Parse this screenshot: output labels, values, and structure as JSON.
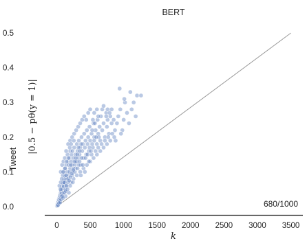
{
  "chart_data": {
    "type": "scatter",
    "title": "BERT",
    "row_label": "Tweet",
    "ylabel": "|0.5 − pθ(y = 1)|",
    "xlabel": "k",
    "xlim": [
      -180,
      3680
    ],
    "ylim": [
      -0.02,
      0.52
    ],
    "x_ticks": [
      0,
      500,
      1000,
      1500,
      2000,
      2500,
      3000,
      3500
    ],
    "x_tick_labels": [
      "0",
      "500",
      "1000",
      "1500",
      "2000",
      "2500",
      "3000",
      "3500"
    ],
    "y_ticks": [
      0.0,
      0.1,
      0.2,
      0.3,
      0.4,
      0.5
    ],
    "y_tick_labels": [
      "0.0",
      "0.1",
      "0.2",
      "0.3",
      "0.4",
      "0.5"
    ],
    "reference_line": {
      "x": [
        0,
        3500
      ],
      "y": [
        0,
        0.5
      ]
    },
    "annotation": "680/1000",
    "grid": false,
    "point_color": "#5b7fbf",
    "line_color": "#999999",
    "series": [
      {
        "points": [
          [
            5,
            0.002
          ],
          [
            8,
            0.005
          ],
          [
            12,
            0.008
          ],
          [
            15,
            0.003
          ],
          [
            20,
            0.012
          ],
          [
            25,
            0.015
          ],
          [
            28,
            0.01
          ],
          [
            30,
            0.02
          ],
          [
            35,
            0.018
          ],
          [
            40,
            0.025
          ],
          [
            42,
            0.015
          ],
          [
            45,
            0.03
          ],
          [
            50,
            0.022
          ],
          [
            55,
            0.035
          ],
          [
            60,
            0.04
          ],
          [
            62,
            0.028
          ],
          [
            65,
            0.045
          ],
          [
            70,
            0.05
          ],
          [
            75,
            0.038
          ],
          [
            80,
            0.055
          ],
          [
            85,
            0.06
          ],
          [
            90,
            0.048
          ],
          [
            95,
            0.065
          ],
          [
            100,
            0.07
          ],
          [
            105,
            0.058
          ],
          [
            110,
            0.075
          ],
          [
            115,
            0.08
          ],
          [
            120,
            0.068
          ],
          [
            125,
            0.085
          ],
          [
            130,
            0.09
          ],
          [
            40,
            0.06
          ],
          [
            60,
            0.07
          ],
          [
            70,
            0.03
          ],
          [
            90,
            0.09
          ],
          [
            100,
            0.04
          ],
          [
            110,
            0.1
          ],
          [
            120,
            0.11
          ],
          [
            130,
            0.05
          ],
          [
            140,
            0.12
          ],
          [
            150,
            0.08
          ],
          [
            150,
            0.06
          ],
          [
            160,
            0.1
          ],
          [
            170,
            0.13
          ],
          [
            180,
            0.09
          ],
          [
            190,
            0.14
          ],
          [
            200,
            0.11
          ],
          [
            210,
            0.07
          ],
          [
            220,
            0.15
          ],
          [
            230,
            0.12
          ],
          [
            240,
            0.1
          ],
          [
            160,
            0.15
          ],
          [
            180,
            0.12
          ],
          [
            200,
            0.16
          ],
          [
            220,
            0.13
          ],
          [
            250,
            0.14
          ],
          [
            260,
            0.17
          ],
          [
            270,
            0.12
          ],
          [
            280,
            0.15
          ],
          [
            300,
            0.13
          ],
          [
            300,
            0.18
          ],
          [
            310,
            0.16
          ],
          [
            320,
            0.14
          ],
          [
            330,
            0.19
          ],
          [
            340,
            0.15
          ],
          [
            350,
            0.17
          ],
          [
            360,
            0.12
          ],
          [
            370,
            0.2
          ],
          [
            380,
            0.16
          ],
          [
            390,
            0.18
          ],
          [
            400,
            0.14
          ],
          [
            410,
            0.21
          ],
          [
            420,
            0.17
          ],
          [
            430,
            0.19
          ],
          [
            440,
            0.15
          ],
          [
            450,
            0.22
          ],
          [
            460,
            0.18
          ],
          [
            470,
            0.2
          ],
          [
            480,
            0.16
          ],
          [
            490,
            0.23
          ],
          [
            500,
            0.19
          ],
          [
            520,
            0.21
          ],
          [
            540,
            0.17
          ],
          [
            550,
            0.24
          ],
          [
            560,
            0.2
          ],
          [
            580,
            0.22
          ],
          [
            600,
            0.18
          ],
          [
            610,
            0.25
          ],
          [
            620,
            0.21
          ],
          [
            640,
            0.23
          ],
          [
            650,
            0.19
          ],
          [
            660,
            0.26
          ],
          [
            680,
            0.22
          ],
          [
            700,
            0.24
          ],
          [
            720,
            0.2
          ],
          [
            740,
            0.27
          ],
          [
            750,
            0.23
          ],
          [
            760,
            0.25
          ],
          [
            780,
            0.21
          ],
          [
            800,
            0.26
          ],
          [
            820,
            0.24
          ],
          [
            540,
            0.25
          ],
          [
            560,
            0.27
          ],
          [
            600,
            0.28
          ],
          [
            620,
            0.26
          ],
          [
            680,
            0.28
          ],
          [
            700,
            0.29
          ],
          [
            740,
            0.26
          ],
          [
            760,
            0.28
          ],
          [
            790,
            0.27
          ],
          [
            820,
            0.28
          ],
          [
            850,
            0.25
          ],
          [
            870,
            0.22
          ],
          [
            900,
            0.24
          ],
          [
            920,
            0.26
          ],
          [
            950,
            0.28
          ],
          [
            980,
            0.22
          ],
          [
            1000,
            0.25
          ],
          [
            1020,
            0.3
          ],
          [
            1050,
            0.27
          ],
          [
            1080,
            0.24
          ],
          [
            940,
            0.34
          ],
          [
            1010,
            0.31
          ],
          [
            1100,
            0.33
          ],
          [
            1150,
            0.3
          ],
          [
            1200,
            0.32
          ],
          [
            1260,
            0.32
          ],
          [
            1120,
            0.28
          ],
          [
            1180,
            0.26
          ],
          [
            880,
            0.19
          ],
          [
            960,
            0.21
          ],
          [
            60,
            0.1
          ],
          [
            80,
            0.12
          ],
          [
            100,
            0.13
          ],
          [
            120,
            0.14
          ],
          [
            140,
            0.16
          ],
          [
            170,
            0.18
          ],
          [
            200,
            0.19
          ],
          [
            230,
            0.2
          ],
          [
            260,
            0.21
          ],
          [
            290,
            0.22
          ],
          [
            320,
            0.23
          ],
          [
            350,
            0.24
          ],
          [
            380,
            0.25
          ],
          [
            410,
            0.26
          ],
          [
            440,
            0.25
          ],
          [
            470,
            0.27
          ],
          [
            500,
            0.28
          ],
          [
            530,
            0.22
          ],
          [
            570,
            0.24
          ],
          [
            630,
            0.2
          ],
          [
            200,
            0.06
          ],
          [
            250,
            0.08
          ],
          [
            300,
            0.09
          ],
          [
            350,
            0.1
          ],
          [
            400,
            0.11
          ],
          [
            450,
            0.12
          ],
          [
            500,
            0.13
          ],
          [
            550,
            0.14
          ],
          [
            600,
            0.15
          ],
          [
            650,
            0.16
          ],
          [
            700,
            0.17
          ],
          [
            750,
            0.18
          ],
          [
            800,
            0.19
          ],
          [
            180,
            0.04
          ],
          [
            130,
            0.03
          ],
          [
            160,
            0.05
          ],
          [
            240,
            0.07
          ],
          [
            280,
            0.11
          ],
          [
            330,
            0.12
          ],
          [
            360,
            0.09
          ],
          [
            420,
            0.1
          ],
          [
            480,
            0.13
          ],
          [
            520,
            0.15
          ],
          [
            580,
            0.16
          ],
          [
            620,
            0.17
          ],
          [
            670,
            0.18
          ],
          [
            720,
            0.19
          ],
          [
            770,
            0.2
          ],
          [
            830,
            0.21
          ],
          [
            860,
            0.2
          ],
          [
            110,
            0.07
          ],
          [
            140,
            0.09
          ],
          [
            170,
            0.08
          ],
          [
            190,
            0.1
          ],
          [
            210,
            0.12
          ],
          [
            230,
            0.09
          ],
          [
            250,
            0.11
          ],
          [
            270,
            0.1
          ],
          [
            290,
            0.13
          ],
          [
            310,
            0.11
          ],
          [
            340,
            0.13
          ],
          [
            370,
            0.14
          ],
          [
            390,
            0.12
          ],
          [
            430,
            0.14
          ],
          [
            460,
            0.15
          ],
          [
            490,
            0.17
          ],
          [
            510,
            0.16
          ],
          [
            530,
            0.18
          ],
          [
            560,
            0.19
          ],
          [
            590,
            0.2
          ],
          [
            20,
            0.005
          ],
          [
            35,
            0.01
          ],
          [
            50,
            0.012
          ],
          [
            65,
            0.02
          ],
          [
            85,
            0.03
          ],
          [
            95,
            0.025
          ],
          [
            115,
            0.04
          ],
          [
            135,
            0.045
          ],
          [
            145,
            0.06
          ],
          [
            165,
            0.07
          ],
          [
            185,
            0.075
          ],
          [
            205,
            0.085
          ],
          [
            225,
            0.095
          ],
          [
            245,
            0.105
          ],
          [
            265,
            0.13
          ],
          [
            285,
            0.14
          ],
          [
            305,
            0.15
          ],
          [
            325,
            0.17
          ],
          [
            345,
            0.16
          ],
          [
            365,
            0.18
          ],
          [
            55,
            0.05
          ],
          [
            75,
            0.08
          ],
          [
            95,
            0.1
          ],
          [
            125,
            0.11
          ],
          [
            145,
            0.13
          ],
          [
            175,
            0.14
          ],
          [
            195,
            0.17
          ],
          [
            215,
            0.18
          ],
          [
            235,
            0.16
          ],
          [
            255,
            0.19
          ]
        ]
      }
    ]
  }
}
